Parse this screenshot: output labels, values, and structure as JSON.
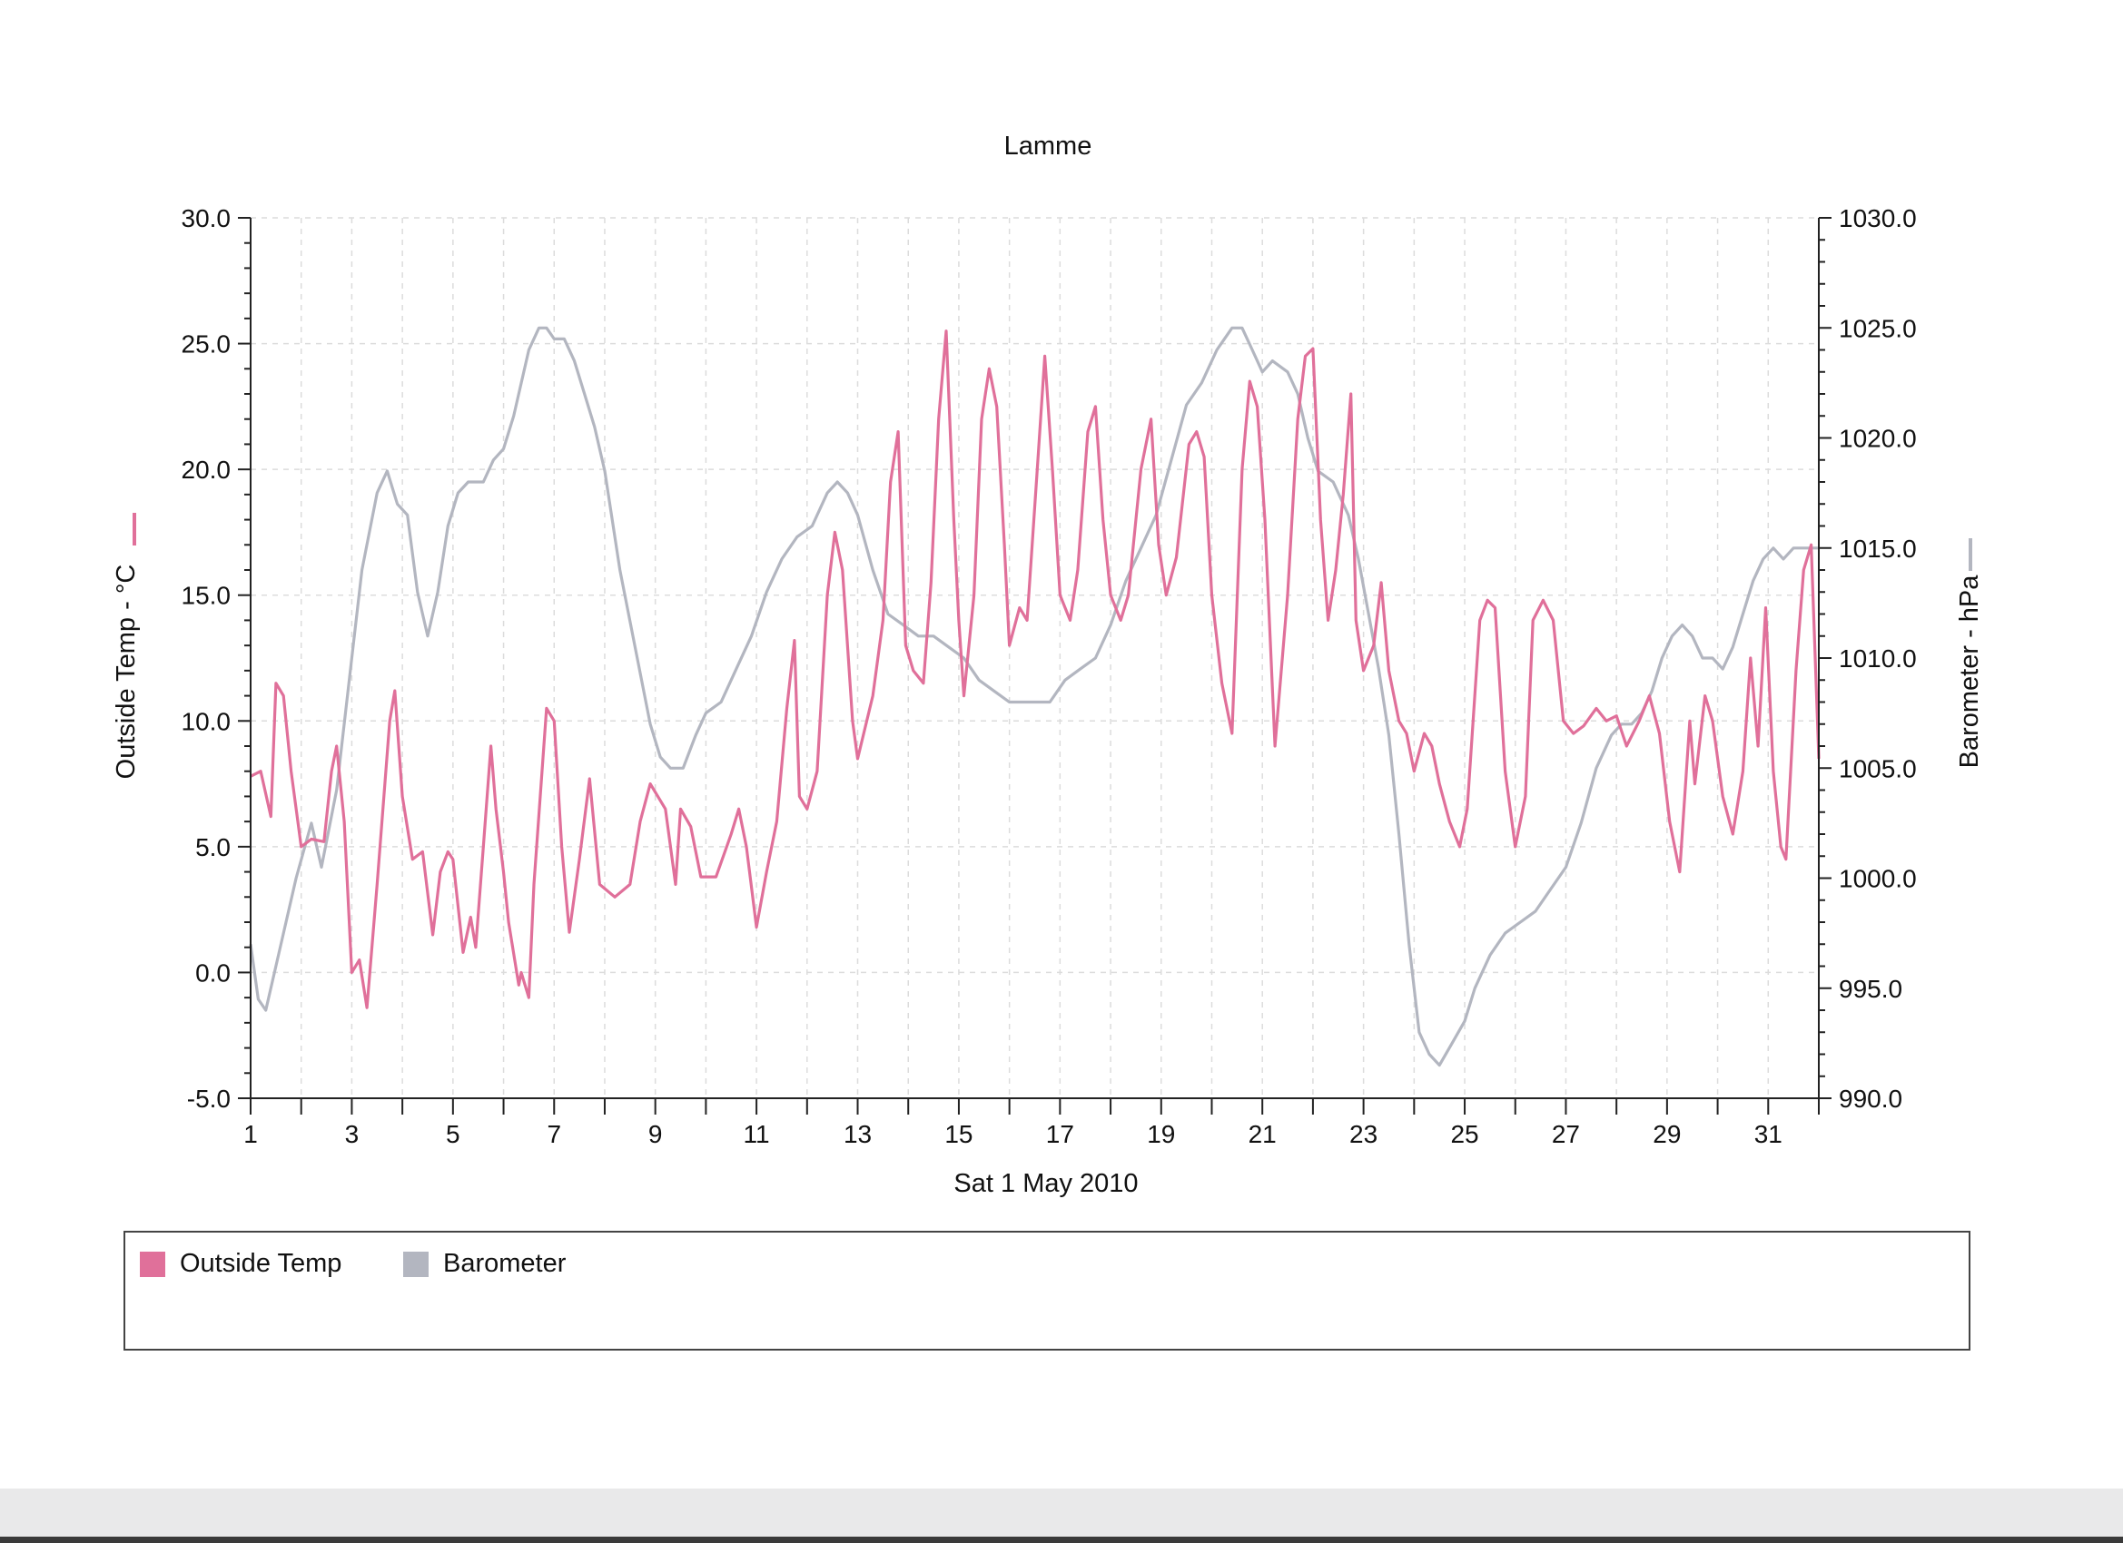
{
  "chart_data": {
    "type": "line",
    "title": "Lamme",
    "xlabel": "Sat 1 May 2010",
    "ylabel_left": "Outside Temp - °C",
    "ylabel_right": "Barometer - hPa",
    "xlim": [
      1,
      32
    ],
    "ylim_left": [
      -5,
      30
    ],
    "ylim_right": [
      990,
      1030
    ],
    "x_ticks": [
      "1",
      "3",
      "5",
      "7",
      "9",
      "11",
      "13",
      "15",
      "17",
      "19",
      "21",
      "23",
      "25",
      "27",
      "29",
      "31"
    ],
    "y_ticks_left": [
      "30.0",
      "25.0",
      "20.0",
      "15.0",
      "10.0",
      "5.0",
      "0.0",
      "-5.0"
    ],
    "y_ticks_right": [
      "1030.0",
      "1025.0",
      "1020.0",
      "1015.0",
      "1010.0",
      "1005.0",
      "1000.0",
      "995.0",
      "990.0"
    ],
    "grid": true,
    "legend_position": "bottom",
    "series": [
      {
        "name": "Outside Temp",
        "axis": "left",
        "color": "#e0709a",
        "points": [
          [
            1.0,
            7.8
          ],
          [
            1.2,
            8.0
          ],
          [
            1.4,
            6.2
          ],
          [
            1.5,
            11.5
          ],
          [
            1.65,
            11.0
          ],
          [
            1.8,
            8.0
          ],
          [
            2.0,
            5.0
          ],
          [
            2.2,
            5.3
          ],
          [
            2.45,
            5.2
          ],
          [
            2.6,
            8.0
          ],
          [
            2.7,
            9.0
          ],
          [
            2.85,
            6.0
          ],
          [
            3.0,
            0.0
          ],
          [
            3.15,
            0.5
          ],
          [
            3.3,
            -1.4
          ],
          [
            3.5,
            3.5
          ],
          [
            3.75,
            10.0
          ],
          [
            3.85,
            11.2
          ],
          [
            4.0,
            7.0
          ],
          [
            4.2,
            4.5
          ],
          [
            4.4,
            4.8
          ],
          [
            4.6,
            1.5
          ],
          [
            4.75,
            4.0
          ],
          [
            4.9,
            4.8
          ],
          [
            5.0,
            4.5
          ],
          [
            5.2,
            0.8
          ],
          [
            5.35,
            2.2
          ],
          [
            5.45,
            1.0
          ],
          [
            5.6,
            5.0
          ],
          [
            5.75,
            9.0
          ],
          [
            5.85,
            6.5
          ],
          [
            6.0,
            4.0
          ],
          [
            6.1,
            2.0
          ],
          [
            6.3,
            -0.5
          ],
          [
            6.35,
            0.0
          ],
          [
            6.5,
            -1.0
          ],
          [
            6.6,
            3.5
          ],
          [
            6.85,
            10.5
          ],
          [
            7.0,
            10.0
          ],
          [
            7.15,
            5.0
          ],
          [
            7.3,
            1.6
          ],
          [
            7.5,
            4.5
          ],
          [
            7.7,
            7.7
          ],
          [
            7.9,
            3.5
          ],
          [
            8.2,
            3.0
          ],
          [
            8.5,
            3.5
          ],
          [
            8.7,
            6.0
          ],
          [
            8.9,
            7.5
          ],
          [
            9.2,
            6.5
          ],
          [
            9.4,
            3.5
          ],
          [
            9.5,
            6.5
          ],
          [
            9.7,
            5.8
          ],
          [
            9.9,
            3.8
          ],
          [
            10.2,
            3.8
          ],
          [
            10.5,
            5.5
          ],
          [
            10.65,
            6.5
          ],
          [
            10.8,
            5.0
          ],
          [
            11.0,
            1.8
          ],
          [
            11.2,
            4.0
          ],
          [
            11.4,
            6.0
          ],
          [
            11.6,
            10.5
          ],
          [
            11.75,
            13.2
          ],
          [
            11.85,
            7.0
          ],
          [
            12.0,
            6.5
          ],
          [
            12.2,
            8.0
          ],
          [
            12.4,
            15.0
          ],
          [
            12.55,
            17.5
          ],
          [
            12.7,
            16.0
          ],
          [
            12.9,
            10.0
          ],
          [
            13.0,
            8.5
          ],
          [
            13.3,
            11.0
          ],
          [
            13.5,
            14.0
          ],
          [
            13.65,
            19.5
          ],
          [
            13.8,
            21.5
          ],
          [
            13.95,
            13.0
          ],
          [
            14.1,
            12.0
          ],
          [
            14.3,
            11.5
          ],
          [
            14.45,
            15.5
          ],
          [
            14.6,
            22.0
          ],
          [
            14.75,
            25.5
          ],
          [
            14.9,
            18.0
          ],
          [
            15.0,
            14.0
          ],
          [
            15.1,
            11.0
          ],
          [
            15.3,
            15.0
          ],
          [
            15.45,
            22.0
          ],
          [
            15.6,
            24.0
          ],
          [
            15.75,
            22.5
          ],
          [
            15.9,
            17.0
          ],
          [
            16.0,
            13.0
          ],
          [
            16.2,
            14.5
          ],
          [
            16.35,
            14.0
          ],
          [
            16.55,
            20.0
          ],
          [
            16.7,
            24.5
          ],
          [
            16.85,
            20.0
          ],
          [
            17.0,
            15.0
          ],
          [
            17.2,
            14.0
          ],
          [
            17.35,
            16.0
          ],
          [
            17.55,
            21.5
          ],
          [
            17.7,
            22.5
          ],
          [
            17.85,
            18.0
          ],
          [
            18.0,
            15.0
          ],
          [
            18.2,
            14.0
          ],
          [
            18.35,
            15.0
          ],
          [
            18.6,
            20.0
          ],
          [
            18.8,
            22.0
          ],
          [
            18.95,
            17.0
          ],
          [
            19.1,
            15.0
          ],
          [
            19.3,
            16.5
          ],
          [
            19.55,
            21.0
          ],
          [
            19.7,
            21.5
          ],
          [
            19.85,
            20.5
          ],
          [
            20.0,
            15.0
          ],
          [
            20.2,
            11.5
          ],
          [
            20.4,
            9.5
          ],
          [
            20.6,
            20.0
          ],
          [
            20.75,
            23.5
          ],
          [
            20.9,
            22.5
          ],
          [
            21.05,
            18.0
          ],
          [
            21.25,
            9.0
          ],
          [
            21.5,
            15.0
          ],
          [
            21.7,
            22.0
          ],
          [
            21.85,
            24.5
          ],
          [
            22.0,
            24.8
          ],
          [
            22.15,
            18.0
          ],
          [
            22.3,
            14.0
          ],
          [
            22.45,
            16.0
          ],
          [
            22.6,
            19.0
          ],
          [
            22.75,
            23.0
          ],
          [
            22.85,
            14.0
          ],
          [
            23.0,
            12.0
          ],
          [
            23.2,
            13.0
          ],
          [
            23.35,
            15.5
          ],
          [
            23.5,
            12.0
          ],
          [
            23.7,
            10.0
          ],
          [
            23.85,
            9.5
          ],
          [
            24.0,
            8.0
          ],
          [
            24.2,
            9.5
          ],
          [
            24.35,
            9.0
          ],
          [
            24.5,
            7.5
          ],
          [
            24.7,
            6.0
          ],
          [
            24.9,
            5.0
          ],
          [
            25.05,
            6.5
          ],
          [
            25.3,
            14.0
          ],
          [
            25.45,
            14.8
          ],
          [
            25.6,
            14.5
          ],
          [
            25.8,
            8.0
          ],
          [
            26.0,
            5.0
          ],
          [
            26.2,
            7.0
          ],
          [
            26.35,
            14.0
          ],
          [
            26.55,
            14.8
          ],
          [
            26.75,
            14.0
          ],
          [
            26.95,
            10.0
          ],
          [
            27.15,
            9.5
          ],
          [
            27.35,
            9.8
          ],
          [
            27.6,
            10.5
          ],
          [
            27.8,
            10.0
          ],
          [
            28.0,
            10.2
          ],
          [
            28.2,
            9.0
          ],
          [
            28.45,
            10.0
          ],
          [
            28.65,
            11.0
          ],
          [
            28.85,
            9.5
          ],
          [
            29.05,
            6.0
          ],
          [
            29.25,
            4.0
          ],
          [
            29.45,
            10.0
          ],
          [
            29.55,
            7.5
          ],
          [
            29.75,
            11.0
          ],
          [
            29.9,
            10.0
          ],
          [
            30.1,
            7.0
          ],
          [
            30.3,
            5.5
          ],
          [
            30.5,
            8.0
          ],
          [
            30.65,
            12.5
          ],
          [
            30.8,
            9.0
          ],
          [
            30.95,
            14.5
          ],
          [
            31.1,
            8.0
          ],
          [
            31.25,
            5.0
          ],
          [
            31.35,
            4.5
          ],
          [
            31.55,
            12.0
          ],
          [
            31.7,
            16.0
          ],
          [
            31.85,
            17.0
          ],
          [
            32.0,
            8.5
          ]
        ]
      },
      {
        "name": "Barometer",
        "axis": "right",
        "color": "#b3b6c0",
        "points": [
          [
            1.0,
            997.0
          ],
          [
            1.15,
            994.5
          ],
          [
            1.3,
            994.0
          ],
          [
            1.6,
            997.0
          ],
          [
            1.9,
            1000.0
          ],
          [
            2.2,
            1002.5
          ],
          [
            2.4,
            1000.5
          ],
          [
            2.7,
            1004.0
          ],
          [
            3.0,
            1010.0
          ],
          [
            3.2,
            1014.0
          ],
          [
            3.5,
            1017.5
          ],
          [
            3.7,
            1018.5
          ],
          [
            3.9,
            1017.0
          ],
          [
            4.1,
            1016.5
          ],
          [
            4.3,
            1013.0
          ],
          [
            4.5,
            1011.0
          ],
          [
            4.7,
            1013.0
          ],
          [
            4.9,
            1016.0
          ],
          [
            5.1,
            1017.5
          ],
          [
            5.3,
            1018.0
          ],
          [
            5.6,
            1018.0
          ],
          [
            5.8,
            1019.0
          ],
          [
            6.0,
            1019.5
          ],
          [
            6.2,
            1021.0
          ],
          [
            6.5,
            1024.0
          ],
          [
            6.7,
            1025.0
          ],
          [
            6.85,
            1025.0
          ],
          [
            7.0,
            1024.5
          ],
          [
            7.2,
            1024.5
          ],
          [
            7.4,
            1023.5
          ],
          [
            7.6,
            1022.0
          ],
          [
            7.8,
            1020.5
          ],
          [
            8.0,
            1018.5
          ],
          [
            8.3,
            1014.0
          ],
          [
            8.6,
            1010.5
          ],
          [
            8.9,
            1007.0
          ],
          [
            9.1,
            1005.5
          ],
          [
            9.3,
            1005.0
          ],
          [
            9.55,
            1005.0
          ],
          [
            9.8,
            1006.5
          ],
          [
            10.0,
            1007.5
          ],
          [
            10.3,
            1008.0
          ],
          [
            10.6,
            1009.5
          ],
          [
            10.9,
            1011.0
          ],
          [
            11.2,
            1013.0
          ],
          [
            11.5,
            1014.5
          ],
          [
            11.8,
            1015.5
          ],
          [
            12.1,
            1016.0
          ],
          [
            12.4,
            1017.5
          ],
          [
            12.6,
            1018.0
          ],
          [
            12.8,
            1017.5
          ],
          [
            13.0,
            1016.5
          ],
          [
            13.3,
            1014.0
          ],
          [
            13.6,
            1012.0
          ],
          [
            13.9,
            1011.5
          ],
          [
            14.2,
            1011.0
          ],
          [
            14.5,
            1011.0
          ],
          [
            14.8,
            1010.5
          ],
          [
            15.1,
            1010.0
          ],
          [
            15.4,
            1009.0
          ],
          [
            15.7,
            1008.5
          ],
          [
            16.0,
            1008.0
          ],
          [
            16.3,
            1008.0
          ],
          [
            16.6,
            1008.0
          ],
          [
            16.8,
            1008.0
          ],
          [
            17.1,
            1009.0
          ],
          [
            17.4,
            1009.5
          ],
          [
            17.7,
            1010.0
          ],
          [
            18.0,
            1011.5
          ],
          [
            18.3,
            1013.5
          ],
          [
            18.6,
            1015.0
          ],
          [
            18.9,
            1016.5
          ],
          [
            19.2,
            1019.0
          ],
          [
            19.5,
            1021.5
          ],
          [
            19.8,
            1022.5
          ],
          [
            20.1,
            1024.0
          ],
          [
            20.4,
            1025.0
          ],
          [
            20.6,
            1025.0
          ],
          [
            20.8,
            1024.0
          ],
          [
            21.0,
            1023.0
          ],
          [
            21.2,
            1023.5
          ],
          [
            21.5,
            1023.0
          ],
          [
            21.7,
            1022.0
          ],
          [
            21.9,
            1020.0
          ],
          [
            22.1,
            1018.5
          ],
          [
            22.4,
            1018.0
          ],
          [
            22.7,
            1016.5
          ],
          [
            22.9,
            1014.5
          ],
          [
            23.1,
            1012.0
          ],
          [
            23.3,
            1009.5
          ],
          [
            23.5,
            1006.5
          ],
          [
            23.7,
            1002.0
          ],
          [
            23.9,
            997.0
          ],
          [
            24.1,
            993.0
          ],
          [
            24.3,
            992.0
          ],
          [
            24.5,
            991.5
          ],
          [
            24.75,
            992.5
          ],
          [
            25.0,
            993.5
          ],
          [
            25.2,
            995.0
          ],
          [
            25.5,
            996.5
          ],
          [
            25.8,
            997.5
          ],
          [
            26.1,
            998.0
          ],
          [
            26.4,
            998.5
          ],
          [
            26.7,
            999.5
          ],
          [
            27.0,
            1000.5
          ],
          [
            27.3,
            1002.5
          ],
          [
            27.6,
            1005.0
          ],
          [
            27.9,
            1006.5
          ],
          [
            28.1,
            1007.0
          ],
          [
            28.3,
            1007.0
          ],
          [
            28.5,
            1007.5
          ],
          [
            28.7,
            1008.5
          ],
          [
            28.9,
            1010.0
          ],
          [
            29.1,
            1011.0
          ],
          [
            29.3,
            1011.5
          ],
          [
            29.5,
            1011.0
          ],
          [
            29.7,
            1010.0
          ],
          [
            29.9,
            1010.0
          ],
          [
            30.1,
            1009.5
          ],
          [
            30.3,
            1010.5
          ],
          [
            30.5,
            1012.0
          ],
          [
            30.7,
            1013.5
          ],
          [
            30.9,
            1014.5
          ],
          [
            31.1,
            1015.0
          ],
          [
            31.3,
            1014.5
          ],
          [
            31.5,
            1015.0
          ],
          [
            31.7,
            1015.0
          ],
          [
            32.0,
            1015.0
          ]
        ]
      }
    ]
  }
}
